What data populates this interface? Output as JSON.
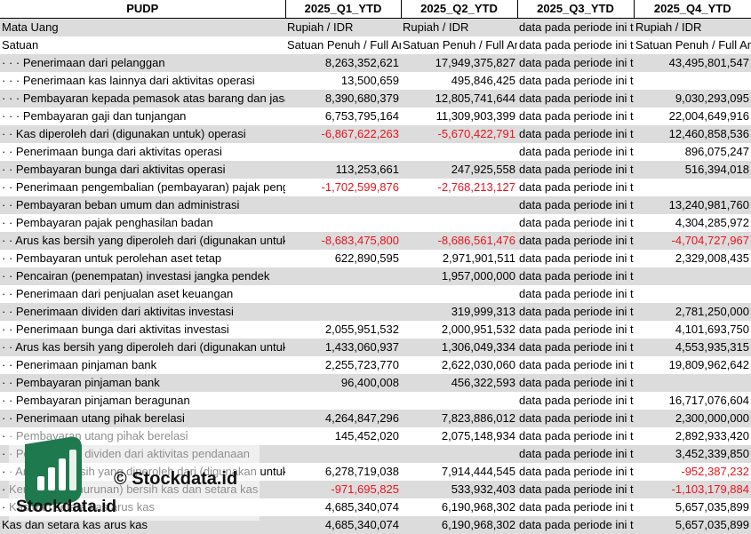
{
  "columns": [
    "PUDP",
    "2025_Q1_YTD",
    "2025_Q2_YTD",
    "2025_Q3_YTD",
    "2025_Q4_YTD"
  ],
  "rows": [
    {
      "label": "Mata Uang",
      "q1": "Rupiah / IDR",
      "q2": "Rupiah / IDR",
      "q3": "data pada periode ini tidak tersedia",
      "q4": "Rupiah / IDR"
    },
    {
      "label": "Satuan",
      "q1": "Satuan Penuh / Full Amount",
      "q2": "Satuan Penuh / Full Amount",
      "q3": "data pada periode ini tidak tersedia",
      "q4": "Satuan Penuh / Full Amount"
    },
    {
      "label": "· · · Penerimaan dari pelanggan",
      "q1": "8,263,352,621",
      "q2": "17,949,375,827",
      "q3": "data pada periode ini tidak tersedia",
      "q4": "43,495,801,547"
    },
    {
      "label": "· · · Penerimaan kas lainnya dari aktivitas operasi",
      "q1": "13,500,659",
      "q2": "495,846,425",
      "q3": "data pada periode ini tidak tersedia",
      "q4": ""
    },
    {
      "label": "· · · Pembayaran kepada pemasok atas barang dan jasa",
      "q1": "8,390,680,379",
      "q2": "12,805,741,644",
      "q3": "data pada periode ini tidak tersedia",
      "q4": "9,030,293,095"
    },
    {
      "label": "· · · Pembayaran gaji dan tunjangan",
      "q1": "6,753,795,164",
      "q2": "11,309,903,399",
      "q3": "data pada periode ini tidak tersedia",
      "q4": "22,004,649,916"
    },
    {
      "label": "· · Kas diperoleh dari (digunakan untuk) operasi",
      "q1": "-6,867,622,263",
      "q2": "-5,670,422,791",
      "q3": "data pada periode ini tidak tersedia",
      "q4": "12,460,858,536"
    },
    {
      "label": "· · Penerimaan bunga dari aktivitas operasi",
      "q1": "",
      "q2": "",
      "q3": "data pada periode ini tidak tersedia",
      "q4": "896,075,247"
    },
    {
      "label": "· · Pembayaran bunga dari aktivitas operasi",
      "q1": "113,253,661",
      "q2": "247,925,558",
      "q3": "data pada periode ini tidak tersedia",
      "q4": "516,394,018"
    },
    {
      "label": "· · Penerimaan pengembalian (pembayaran) pajak penghasilan",
      "q1": "-1,702,599,876",
      "q2": "-2,768,213,127",
      "q3": "data pada periode ini tidak tersedia",
      "q4": ""
    },
    {
      "label": "· · Pembayaran beban umum dan administrasi",
      "q1": "",
      "q2": "",
      "q3": "data pada periode ini tidak tersedia",
      "q4": "13,240,981,760"
    },
    {
      "label": "· · Pembayaran pajak penghasilan badan",
      "q1": "",
      "q2": "",
      "q3": "data pada periode ini tidak tersedia",
      "q4": "4,304,285,972"
    },
    {
      "label": "· · Arus kas bersih yang diperoleh dari (digunakan untuk) aktivitas operasi",
      "q1": "-8,683,475,800",
      "q2": "-8,686,561,476",
      "q3": "data pada periode ini tidak tersedia",
      "q4": "-4,704,727,967"
    },
    {
      "label": "· · Pembayaran untuk perolehan aset tetap",
      "q1": "622,890,595",
      "q2": "2,971,901,511",
      "q3": "data pada periode ini tidak tersedia",
      "q4": "2,329,008,435"
    },
    {
      "label": "· · Pencairan (penempatan) investasi jangka pendek",
      "q1": "",
      "q2": "1,957,000,000",
      "q3": "data pada periode ini tidak tersedia",
      "q4": ""
    },
    {
      "label": "· · Penerimaan dari penjualan aset keuangan",
      "q1": "",
      "q2": "",
      "q3": "data pada periode ini tidak tersedia",
      "q4": ""
    },
    {
      "label": "· · Penerimaan dividen dari aktivitas investasi",
      "q1": "",
      "q2": "319,999,313",
      "q3": "data pada periode ini tidak tersedia",
      "q4": "2,781,250,000"
    },
    {
      "label": "· · Penerimaan bunga dari aktivitas investasi",
      "q1": "2,055,951,532",
      "q2": "2,000,951,532",
      "q3": "data pada periode ini tidak tersedia",
      "q4": "4,101,693,750"
    },
    {
      "label": "· · Arus kas bersih yang diperoleh dari (digunakan untuk) aktivitas investasi",
      "q1": "1,433,060,937",
      "q2": "1,306,049,334",
      "q3": "data pada periode ini tidak tersedia",
      "q4": "4,553,935,315"
    },
    {
      "label": "· · Penerimaan pinjaman bank",
      "q1": "2,255,723,770",
      "q2": "2,622,030,060",
      "q3": "data pada periode ini tidak tersedia",
      "q4": "19,809,962,642"
    },
    {
      "label": "· · Pembayaran pinjaman bank",
      "q1": "96,400,008",
      "q2": "456,322,593",
      "q3": "data pada periode ini tidak tersedia",
      "q4": ""
    },
    {
      "label": "· · Pembayaran pinjaman beragunan",
      "q1": "",
      "q2": "",
      "q3": "data pada periode ini tidak tersedia",
      "q4": "16,717,076,604"
    },
    {
      "label": "· · Penerimaan utang pihak berelasi",
      "q1": "4,264,847,296",
      "q2": "7,823,886,012",
      "q3": "data pada periode ini tidak tersedia",
      "q4": "2,300,000,000"
    },
    {
      "label": "· · Pembayaran utang pihak berelasi",
      "q1": "145,452,020",
      "q2": "2,075,148,934",
      "q3": "data pada periode ini tidak tersedia",
      "q4": "2,892,933,420"
    },
    {
      "label": "· · Pembayaran dividen dari aktivitas pendanaan",
      "q1": "",
      "q2": "",
      "q3": "data pada periode ini tidak tersedia",
      "q4": "3,452,339,850"
    },
    {
      "label": "· · Arus kas bersih yang diperoleh dari (digunakan untuk) aktivitas pendanaan",
      "q1": "6,278,719,038",
      "q2": "7,914,444,545",
      "q3": "data pada periode ini tidak tersedia",
      "q4": "-952,387,232"
    },
    {
      "label": "· Kenaikan (penurunan) bersih kas dan setara kas",
      "q1": "-971,695,825",
      "q2": "533,932,403",
      "q3": "data pada periode ini tidak tersedia",
      "q4": "-1,103,179,884"
    },
    {
      "label": "· Kas dan setara kas arus kas",
      "q1": "4,685,340,074",
      "q2": "6,190,968,302",
      "q3": "data pada periode ini tidak tersedia",
      "q4": "5,657,035,899"
    },
    {
      "label": "Kas dan setara kas arus kas",
      "q1": "4,685,340,074",
      "q2": "6,190,968,302",
      "q3": "data pada periode ini tidak tersedia",
      "q4": "5,657,035,899"
    }
  ],
  "watermark": {
    "copyright": "© Stockdata.id",
    "brand": "Stockdata.id",
    "logo_icon": "bar-chart-logo-icon",
    "logo_color": "#1e7a4e"
  },
  "colors": {
    "negative": "#e8141e",
    "band": "#dcdcdc"
  }
}
